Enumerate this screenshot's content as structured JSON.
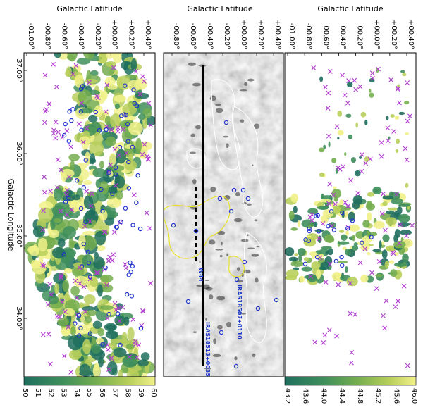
{
  "chart_data": [
    {
      "type": "scatter",
      "title": "",
      "xlabel": "Galactic Latitude",
      "ylabel": "Galactic Longitude",
      "x_ticks": [
        "-01.00°",
        "-00.80°",
        "-00.60°",
        "-00.40°",
        "-00.20°",
        "+00.00°",
        "+00.20°",
        "+00.40°"
      ],
      "y_ticks": [
        "37.00°",
        "36.00°",
        "35.00°",
        "34.00°"
      ],
      "colorbar": {
        "ticks": [
          "50",
          "51",
          "52",
          "53",
          "54",
          "55",
          "56",
          "57",
          "58",
          "59",
          "60"
        ],
        "range": [
          50,
          60
        ]
      },
      "cmap": [
        "#1f6e5e",
        "#3f8f5c",
        "#74ad4f",
        "#b8cf5a",
        "#f1f18a"
      ]
    },
    {
      "type": "scatter",
      "title": "",
      "xlabel": "Galactic Latitude",
      "x_ticks": [
        "-00.80°",
        "-00.60°",
        "-00.40°",
        "-00.20°",
        "+00.00°",
        "+00.20°",
        "+00.40°"
      ],
      "annotations": [
        "IRAS18507+0110",
        "IRAS18513+0035",
        "W44"
      ],
      "line_b": -0.38,
      "dashed_b": -0.55
    },
    {
      "type": "scatter",
      "title": "",
      "xlabel": "Galactic Latitude",
      "x_ticks": [
        "-01.00°",
        "-00.80°",
        "-00.60°",
        "-00.40°",
        "-00.20°",
        "+00.00°",
        "+00.20°",
        "+00.40°"
      ],
      "colorbar": {
        "ticks": [
          "43.2",
          "43.6",
          "44.0",
          "44.4",
          "44.8",
          "45.2",
          "45.6",
          "46.0"
        ],
        "range": [
          43.2,
          46.0
        ]
      },
      "cmap": [
        "#1f6e5e",
        "#3f8f5c",
        "#74ad4f",
        "#b8cf5a",
        "#f1f18a"
      ]
    }
  ],
  "colors": {
    "cross": "#b03ad0",
    "circle": "#2233cc",
    "contour_yellow": "#e8e020",
    "text_blue": "#1c36c8"
  }
}
